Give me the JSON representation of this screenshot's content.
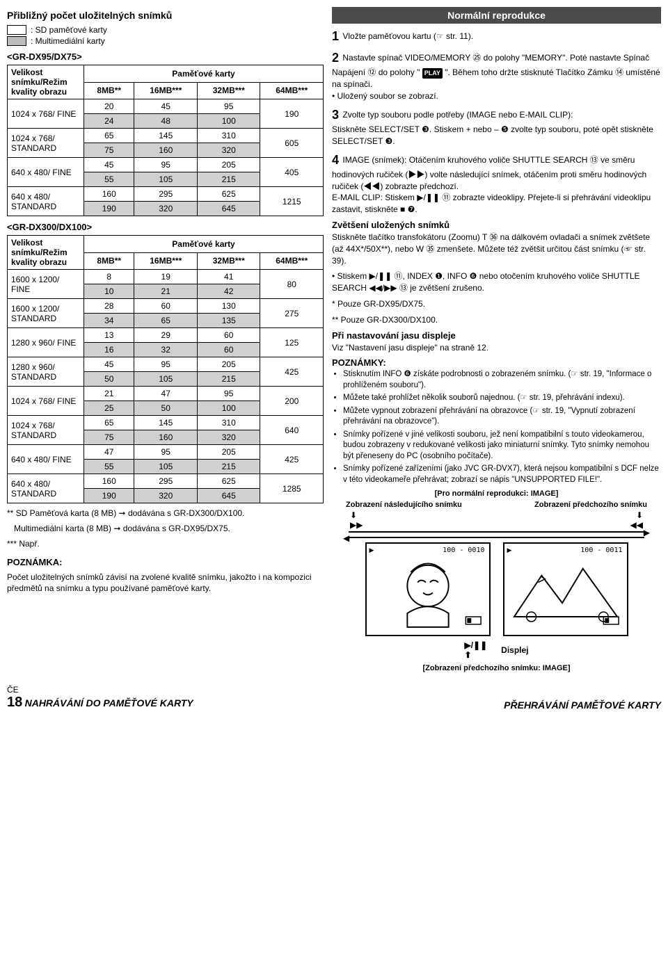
{
  "left": {
    "title": "Přibližný počet uložitelných snímků",
    "legend_sd": ": SD paměťové karty",
    "legend_mm": ": Multimediální karty",
    "model1": "<GR-DX95/DX75>",
    "model2": "<GR-DX300/DX100>",
    "thead": {
      "left": "Velikost snímku/Režim kvality obrazu",
      "mem": "Paměťové karty",
      "c1": "8MB**",
      "c2": "16MB***",
      "c3": "32MB***",
      "c4": "64MB***"
    },
    "t1rows": [
      {
        "label": "1024 x 768/ FINE",
        "a": [
          "20",
          "45",
          "95"
        ],
        "b": [
          "24",
          "48",
          "100"
        ],
        "last": "190"
      },
      {
        "label": "1024 x 768/ STANDARD",
        "a": [
          "65",
          "145",
          "310"
        ],
        "b": [
          "75",
          "160",
          "320"
        ],
        "last": "605"
      },
      {
        "label": "640 x 480/ FINE",
        "a": [
          "45",
          "95",
          "205"
        ],
        "b": [
          "55",
          "105",
          "215"
        ],
        "last": "405"
      },
      {
        "label": "640 x 480/ STANDARD",
        "a": [
          "160",
          "295",
          "625"
        ],
        "b": [
          "190",
          "320",
          "645"
        ],
        "last": "1215"
      }
    ],
    "t2rows": [
      {
        "label": "1600 x 1200/ FINE",
        "a": [
          "8",
          "19",
          "41"
        ],
        "b": [
          "10",
          "21",
          "42"
        ],
        "last": "80"
      },
      {
        "label": "1600 x 1200/ STANDARD",
        "a": [
          "28",
          "60",
          "130"
        ],
        "b": [
          "34",
          "65",
          "135"
        ],
        "last": "275"
      },
      {
        "label": "1280 x 960/ FINE",
        "a": [
          "13",
          "29",
          "60"
        ],
        "b": [
          "16",
          "32",
          "60"
        ],
        "last": "125"
      },
      {
        "label": "1280 x 960/ STANDARD",
        "a": [
          "45",
          "95",
          "205"
        ],
        "b": [
          "50",
          "105",
          "215"
        ],
        "last": "425"
      },
      {
        "label": "1024 x 768/ FINE",
        "a": [
          "21",
          "47",
          "95"
        ],
        "b": [
          "25",
          "50",
          "100"
        ],
        "last": "200"
      },
      {
        "label": "1024 x 768/ STANDARD",
        "a": [
          "65",
          "145",
          "310"
        ],
        "b": [
          "75",
          "160",
          "320"
        ],
        "last": "640"
      },
      {
        "label": "640 x 480/ FINE",
        "a": [
          "47",
          "95",
          "205"
        ],
        "b": [
          "55",
          "105",
          "215"
        ],
        "last": "425"
      },
      {
        "label": "640 x 480/ STANDARD",
        "a": [
          "160",
          "295",
          "625"
        ],
        "b": [
          "190",
          "320",
          "645"
        ],
        "last": "1285"
      }
    ],
    "foot1": "** SD Paměťová karta (8 MB) ➞ dodávána s GR-DX300/DX100.",
    "foot2": "Multimediální karta (8 MB) ➞ dodávána s GR-DX95/DX75.",
    "foot3": "*** Např.",
    "pozn_h": "POZNÁMKA:",
    "pozn_t": "Počet uložitelných snímků závisí na zvolené kvalitě snímku, jakožto i na kompozici předmětů na snímku a typu používané paměťové karty."
  },
  "right": {
    "banner": "Normální reprodukce",
    "s1_pre": "Vložte paměťovou kartu (☞ str. 11).",
    "s2": "Nastavte spínač VIDEO/MEMORY ㉕ do polohy \"MEMORY\". Poté nastavte Spínač Napájení ⑫ do polohy \"",
    "s2b": "\". Během toho držte stisknuté Tlačítko Zámku ⑭ umístěné na spínači.",
    "s2_bullet": "• Uložený soubor se zobrazí.",
    "s3": "Zvolte typ souboru podle potřeby (IMAGE nebo E-MAIL CLIP):",
    "s3b": "Stiskněte SELECT/SET ❸. Stiskem + nebo – ❺ zvolte typ souboru, poté opět stiskněte SELECT/SET ❸.",
    "s4": "IMAGE (snímek): Otáčením kruhového voliče SHUTTLE SEARCH ⑬ ve směru hodinových ručiček (▶▶) volte následující snímek, otáčením proti směru hodinových ručiček (◀◀) zobrazte předchozí.",
    "s4b": "E-MAIL CLIP: Stiskem ▶/❚❚ ⑪ zobrazte videoklipy. Přejete-li si přehrávání videoklipu zastavit, stiskněte ■ ❼.",
    "zoom_h": "Zvětšení uložených snímků",
    "zoom_t": "Stiskněte tlačítko transfokátoru (Zoomu) T ㊱ na dálkovém ovladači a snímek zvětšete (až 44X*/50X**), nebo W ㉟ zmenšete. Můžete též zvětšit určitou část snímku (☞ str. 39).",
    "zoom_b": "• Stiskem ▶/❚❚ ⑪, INDEX ❶, INFO ❻ nebo otočením kruhového voliče SHUTTLE SEARCH ◀◀/▶▶ ⑬ je zvětšení zrušeno.",
    "star1": "* Pouze GR-DX95/DX75.",
    "star2": "** Pouze GR-DX300/DX100.",
    "jas_h": "Při nastavování jasu displeje",
    "jas_t": "Viz \"Nastavení jasu displeje\" na straně 12.",
    "pozn_h": "POZNÁMKY:",
    "notes": [
      "Stisknutím INFO ❻ získáte podrobnosti o zobrazeném snímku. (☞ str. 19, \"Informace o prohlíženém souboru\").",
      "Můžete také prohlížet několik souborů najednou. (☞ str. 19, přehrávání indexu).",
      "Můžete vypnout zobrazení přehrávání na obrazovce (☞ str. 19, \"Vypnutí zobrazení přehrávání na obrazovce\").",
      "Snímky pořízené v jiné velikosti souboru, jež není kompatibilní s touto videokamerou, budou zobrazeny v redukované velikosti jako miniaturní snímky. Tyto snímky nemohou být přeneseny do PC (osobního počítače).",
      "Snímky pořízené zařízeními (jako JVC GR-DVX7), která nejsou kompatibilní s DCF nelze v této videokameře přehrávat; zobrazí se nápis \"UNSUPPORTED FILE!\"."
    ],
    "bracket": "[Pro normální reprodukci: IMAGE]",
    "zleft": "Zobrazení následujícího snímku",
    "zright": "Zobrazení předchozího snímku",
    "id1": "100 - 0010",
    "id2": "100 - 0011",
    "displej": "Displej",
    "bracket2": "[Zobrazení předchozího snímku: IMAGE]"
  },
  "footer": {
    "ce": "ČE",
    "pg": "18",
    "lefttitle": "NAHRÁVÁNÍ DO PAMĚŤOVÉ KARTY",
    "righttitle": "PŘEHRÁVÁNÍ PAMĚŤOVÉ KARTY"
  }
}
